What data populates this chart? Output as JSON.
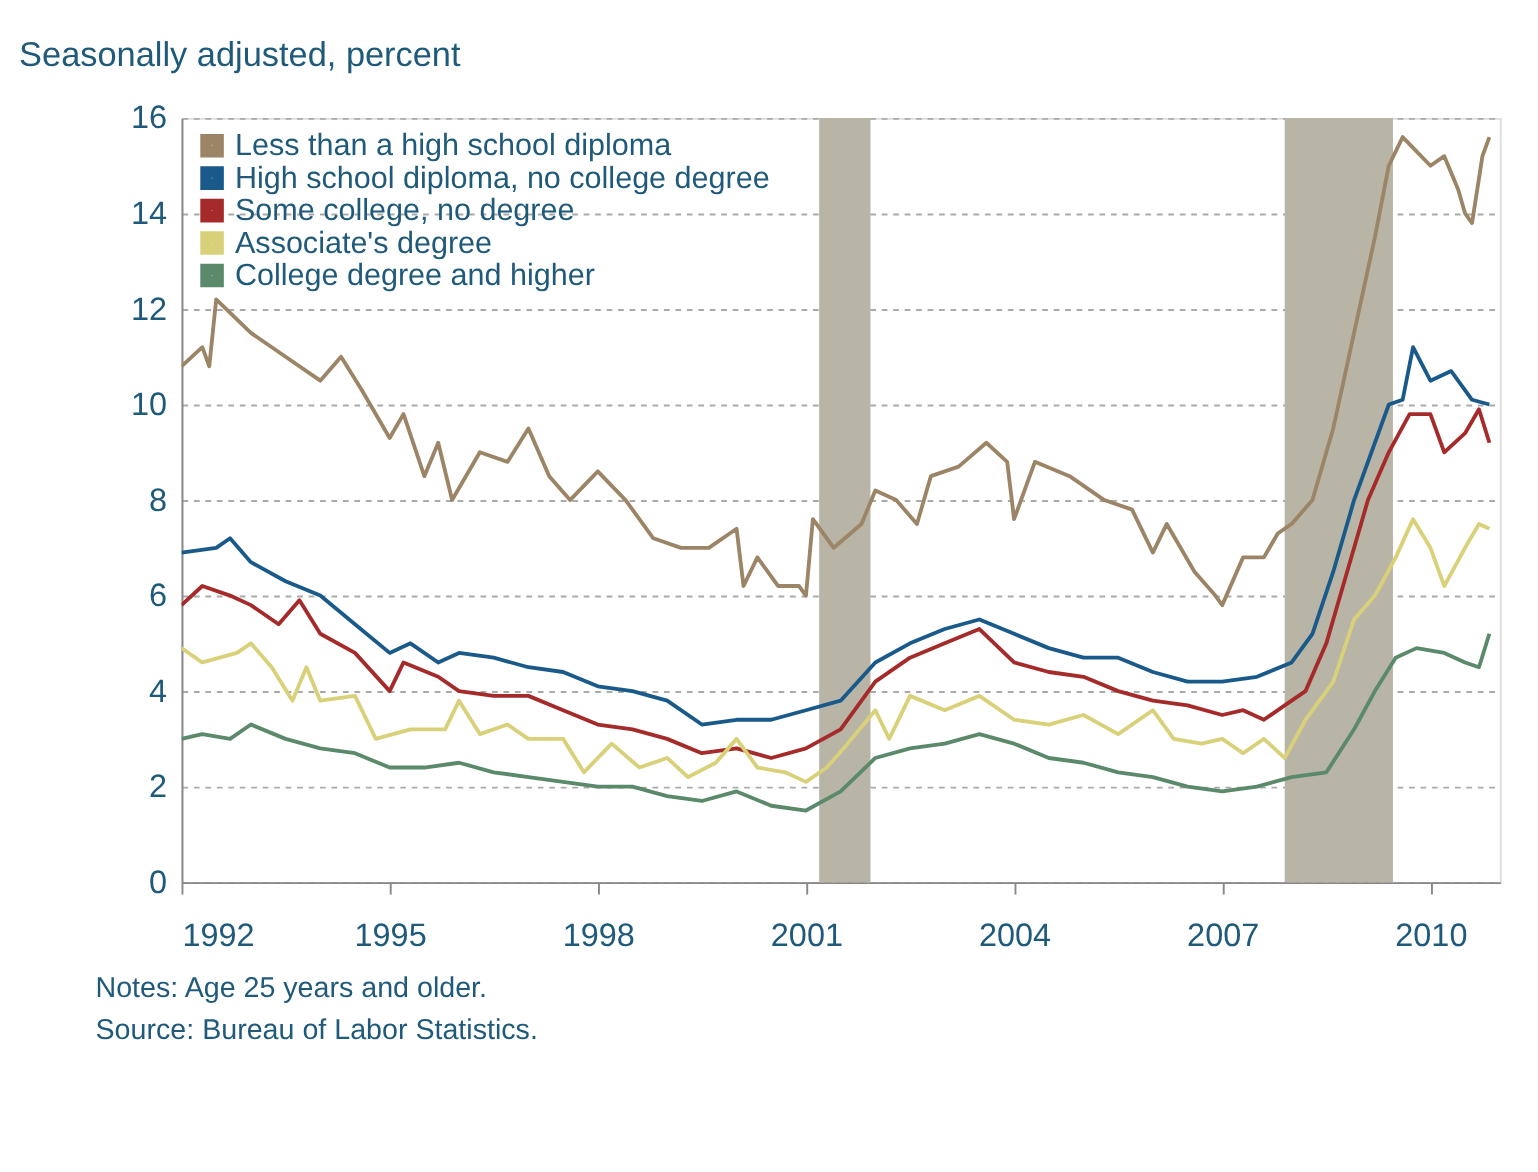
{
  "chart_data": {
    "type": "line",
    "title": "Seasonally adjusted, percent",
    "annotations": [
      "Notes: Age 25 years and older.",
      "Source: Bureau of Labor Statistics."
    ],
    "xlim": [
      1992,
      2011
    ],
    "xticks": [
      1992,
      1995,
      1998,
      2001,
      2004,
      2007,
      2010
    ],
    "ylim": [
      0,
      16
    ],
    "yticks": [
      0,
      2,
      4,
      6,
      8,
      10,
      12,
      14,
      16
    ],
    "grid": "y",
    "legend": "top left",
    "line_style": "solid",
    "marker": "none",
    "bands": [
      {
        "axis": "x",
        "from": 2001.19,
        "to": 2001.93,
        "color": "#b8b4a6"
      },
      {
        "axis": "x",
        "from": 2007.9,
        "to": 2009.46,
        "color": "#b8b4a6"
      }
    ],
    "series": [
      {
        "name": "Less than a high school diploma",
        "color": "#9c8566",
        "x": [
          1992,
          1992.3,
          1992.4,
          1992.5,
          1993,
          1993.5,
          1994,
          1994.3,
          1994.6,
          1995,
          1995.2,
          1995.5,
          1995.7,
          1995.9,
          1996.3,
          1996.7,
          1997,
          1997.3,
          1997.6,
          1998,
          1998.4,
          1998.8,
          1999.2,
          1999.6,
          2000,
          2000.1,
          2000.3,
          2000.6,
          2000.9,
          2001,
          2001.1,
          2001.4,
          2001.8,
          2002,
          2002.3,
          2002.6,
          2002.8,
          2003.2,
          2003.6,
          2003.9,
          2004,
          2004.3,
          2004.8,
          2005.3,
          2005.7,
          2006,
          2006.2,
          2006.6,
          2006.9,
          2007,
          2007.3,
          2007.6,
          2007.8,
          2008,
          2008.3,
          2008.6,
          2008.9,
          2009.2,
          2009.4,
          2009.6,
          2009.8,
          2010,
          2010.2,
          2010.4,
          2010.5,
          2010.6,
          2010.75,
          2010.85
        ],
        "values": [
          10.8,
          11.2,
          10.8,
          12.2,
          11.5,
          11.0,
          10.5,
          11.0,
          10.3,
          9.3,
          9.8,
          8.5,
          9.2,
          8.0,
          9.0,
          8.8,
          9.5,
          8.5,
          8.0,
          8.6,
          8.0,
          7.2,
          7.0,
          7.0,
          7.4,
          6.2,
          6.8,
          6.2,
          6.2,
          6.0,
          7.6,
          7.0,
          7.5,
          8.2,
          8.0,
          7.5,
          8.5,
          8.7,
          9.2,
          8.8,
          7.6,
          8.8,
          8.5,
          8.0,
          7.8,
          6.9,
          7.5,
          6.5,
          6.0,
          5.8,
          6.8,
          6.8,
          7.3,
          7.5,
          8.0,
          9.5,
          11.5,
          13.5,
          15.0,
          15.6,
          15.3,
          15.0,
          15.2,
          14.5,
          14.0,
          13.8,
          15.2,
          15.6
        ]
      },
      {
        "name": "High school diploma, no college degree",
        "color": "#1a5a8a",
        "x": [
          1992,
          1992.5,
          1992.7,
          1993,
          1993.5,
          1994,
          1994.5,
          1995,
          1995.3,
          1995.7,
          1996,
          1996.5,
          1997,
          1997.5,
          1998,
          1998.5,
          1999,
          1999.5,
          2000,
          2000.5,
          2001,
          2001.5,
          2002,
          2002.5,
          2003,
          2003.5,
          2004,
          2004.5,
          2005,
          2005.5,
          2006,
          2006.5,
          2007,
          2007.5,
          2008,
          2008.3,
          2008.6,
          2008.9,
          2009.2,
          2009.4,
          2009.6,
          2009.75,
          2010,
          2010.3,
          2010.6,
          2010.85
        ],
        "values": [
          6.9,
          7.0,
          7.2,
          6.7,
          6.3,
          6.0,
          5.4,
          4.8,
          5.0,
          4.6,
          4.8,
          4.7,
          4.5,
          4.4,
          4.1,
          4.0,
          3.8,
          3.3,
          3.4,
          3.4,
          3.6,
          3.8,
          4.6,
          5.0,
          5.3,
          5.5,
          5.2,
          4.9,
          4.7,
          4.7,
          4.4,
          4.2,
          4.2,
          4.3,
          4.6,
          5.2,
          6.5,
          8.0,
          9.2,
          10.0,
          10.1,
          11.2,
          10.5,
          10.7,
          10.1,
          10.0
        ]
      },
      {
        "name": "Some college, no degree",
        "color": "#a52a2a",
        "x": [
          1992,
          1992.3,
          1992.7,
          1993,
          1993.4,
          1993.7,
          1994,
          1994.5,
          1995,
          1995.2,
          1995.7,
          1996,
          1996.5,
          1997,
          1997.5,
          1998,
          1998.5,
          1999,
          1999.5,
          2000,
          2000.5,
          2001,
          2001.5,
          2002,
          2002.5,
          2003,
          2003.5,
          2004,
          2004.5,
          2005,
          2005.5,
          2006,
          2006.5,
          2007,
          2007.3,
          2007.6,
          2007.9,
          2008.2,
          2008.5,
          2008.8,
          2009.1,
          2009.4,
          2009.7,
          2010,
          2010.2,
          2010.5,
          2010.7,
          2010.85
        ],
        "values": [
          5.8,
          6.2,
          6.0,
          5.8,
          5.4,
          5.9,
          5.2,
          4.8,
          4.0,
          4.6,
          4.3,
          4.0,
          3.9,
          3.9,
          3.6,
          3.3,
          3.2,
          3.0,
          2.7,
          2.8,
          2.6,
          2.8,
          3.2,
          4.2,
          4.7,
          5.0,
          5.3,
          4.6,
          4.4,
          4.3,
          4.0,
          3.8,
          3.7,
          3.5,
          3.6,
          3.4,
          3.7,
          4.0,
          5.0,
          6.5,
          8.0,
          9.0,
          9.8,
          9.8,
          9.0,
          9.4,
          9.9,
          9.2
        ]
      },
      {
        "name": "Associate's degree",
        "color": "#d9d17a",
        "x": [
          1992,
          1992.3,
          1992.8,
          1993,
          1993.3,
          1993.6,
          1993.8,
          1994,
          1994.5,
          1994.8,
          1995.3,
          1995.8,
          1996,
          1996.3,
          1996.7,
          1997,
          1997.5,
          1997.8,
          1998.2,
          1998.6,
          1999,
          1999.3,
          1999.7,
          2000,
          2000.3,
          2000.7,
          2001,
          2001.3,
          2001.6,
          2002,
          2002.2,
          2002.5,
          2003,
          2003.5,
          2004,
          2004.5,
          2005,
          2005.5,
          2006,
          2006.3,
          2006.7,
          2007,
          2007.3,
          2007.6,
          2007.9,
          2008.2,
          2008.6,
          2008.9,
          2009.2,
          2009.5,
          2009.75,
          2010,
          2010.2,
          2010.5,
          2010.7,
          2010.85
        ],
        "values": [
          4.9,
          4.6,
          4.8,
          5.0,
          4.5,
          3.8,
          4.5,
          3.8,
          3.9,
          3.0,
          3.2,
          3.2,
          3.8,
          3.1,
          3.3,
          3.0,
          3.0,
          2.3,
          2.9,
          2.4,
          2.6,
          2.2,
          2.5,
          3.0,
          2.4,
          2.3,
          2.1,
          2.4,
          2.9,
          3.6,
          3.0,
          3.9,
          3.6,
          3.9,
          3.4,
          3.3,
          3.5,
          3.1,
          3.6,
          3.0,
          2.9,
          3.0,
          2.7,
          3.0,
          2.6,
          3.4,
          4.2,
          5.5,
          6.0,
          6.8,
          7.6,
          7.0,
          6.2,
          7.0,
          7.5,
          7.4
        ]
      },
      {
        "name": "College degree and higher",
        "color": "#5a8a6a",
        "x": [
          1992,
          1992.3,
          1992.7,
          1993,
          1993.5,
          1994,
          1994.5,
          1995,
          1995.5,
          1996,
          1996.5,
          1997,
          1997.5,
          1998,
          1998.5,
          1999,
          1999.5,
          2000,
          2000.5,
          2001,
          2001.5,
          2002,
          2002.5,
          2003,
          2003.5,
          2004,
          2004.5,
          2005,
          2005.5,
          2006,
          2006.5,
          2007,
          2007.5,
          2008,
          2008.5,
          2008.9,
          2009.2,
          2009.5,
          2009.8,
          2010.2,
          2010.5,
          2010.7,
          2010.85
        ],
        "values": [
          3.0,
          3.1,
          3.0,
          3.3,
          3.0,
          2.8,
          2.7,
          2.4,
          2.4,
          2.5,
          2.3,
          2.2,
          2.1,
          2.0,
          2.0,
          1.8,
          1.7,
          1.9,
          1.6,
          1.5,
          1.9,
          2.6,
          2.8,
          2.9,
          3.1,
          2.9,
          2.6,
          2.5,
          2.3,
          2.2,
          2.0,
          1.9,
          2.0,
          2.2,
          2.3,
          3.2,
          4.0,
          4.7,
          4.9,
          4.8,
          4.6,
          4.5,
          5.2
        ]
      }
    ]
  }
}
